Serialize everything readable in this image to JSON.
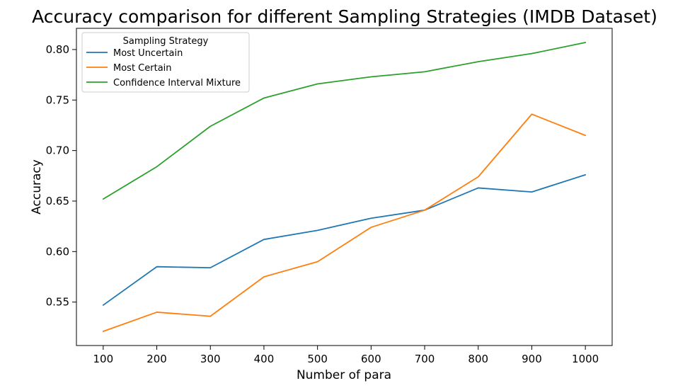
{
  "chart_data": {
    "type": "line",
    "title": "Accuracy comparison for different Sampling Strategies (IMDB Dataset)",
    "xlabel": "Number of para",
    "ylabel": "Accuracy",
    "x": [
      100,
      200,
      300,
      400,
      500,
      600,
      700,
      800,
      900,
      1000
    ],
    "x_ticks": [
      "100",
      "200",
      "300",
      "400",
      "500",
      "600",
      "700",
      "800",
      "900",
      "1000"
    ],
    "y_ticks": [
      "0.55",
      "0.60",
      "0.65",
      "0.70",
      "0.75",
      "0.80"
    ],
    "xlim": [
      50,
      1050
    ],
    "ylim": [
      0.507,
      0.821
    ],
    "grid": false,
    "legend": {
      "title": "Sampling Strategy",
      "placement": "upper-left"
    },
    "series": [
      {
        "name": "Most Uncertain",
        "color": "#1f77b4",
        "values": [
          0.547,
          0.585,
          0.584,
          0.612,
          0.621,
          0.633,
          0.641,
          0.663,
          0.659,
          0.676
        ]
      },
      {
        "name": "Most Certain",
        "color": "#ff7f0e",
        "values": [
          0.521,
          0.54,
          0.536,
          0.575,
          0.59,
          0.624,
          0.641,
          0.674,
          0.736,
          0.715
        ]
      },
      {
        "name": "Confidence Interval Mixture",
        "color": "#2ca02c",
        "values": [
          0.652,
          0.684,
          0.724,
          0.752,
          0.766,
          0.773,
          0.778,
          0.788,
          0.796,
          0.807
        ]
      }
    ]
  }
}
